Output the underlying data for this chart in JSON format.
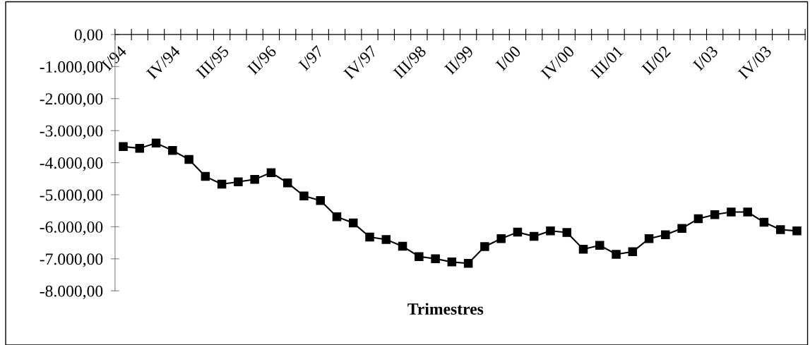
{
  "chart_data": {
    "type": "line",
    "xlabel": "Trimestres",
    "categories": [
      "I/94",
      null,
      null,
      "IV/94",
      null,
      null,
      "III/95",
      null,
      null,
      "II/96",
      null,
      null,
      "I/97",
      null,
      null,
      "IV/97",
      null,
      null,
      "III/98",
      null,
      null,
      "II/99",
      null,
      null,
      "I/00",
      null,
      null,
      "IV/00",
      null,
      null,
      "III/01",
      null,
      null,
      "II/02",
      null,
      null,
      "I/03",
      null,
      null,
      "IV/03",
      null,
      null
    ],
    "series": [
      {
        "color": "#000000",
        "values": [
          -3500,
          -3550,
          -3390,
          -3620,
          -3900,
          -4430,
          -4670,
          -4600,
          -4520,
          -4310,
          -4630,
          -5040,
          -5180,
          -5690,
          -5880,
          -6320,
          -6400,
          -6610,
          -6930,
          -7000,
          -7100,
          -7140,
          -6620,
          -6370,
          -6170,
          -6300,
          -6130,
          -6180,
          -6700,
          -6580,
          -6860,
          -6780,
          -6370,
          -6250,
          -6050,
          -5750,
          -5620,
          -5540,
          -5540,
          -5860,
          -6090,
          -6130
        ]
      }
    ],
    "ylim": [
      -8000,
      0
    ],
    "yticks": [
      {
        "value": 0,
        "label": "0,00"
      },
      {
        "value": -1000,
        "label": "-1.000,00"
      },
      {
        "value": -2000,
        "label": "-2.000,00"
      },
      {
        "value": -3000,
        "label": "-3.000,00"
      },
      {
        "value": -4000,
        "label": "-4.000,00"
      },
      {
        "value": -5000,
        "label": "-5.000,00"
      },
      {
        "value": -6000,
        "label": "-6.000,00"
      },
      {
        "value": -7000,
        "label": "-7.000,00"
      },
      {
        "value": -8000,
        "label": "-8.000,00"
      }
    ],
    "marker": "square",
    "line_style": "solid",
    "grid": false
  }
}
